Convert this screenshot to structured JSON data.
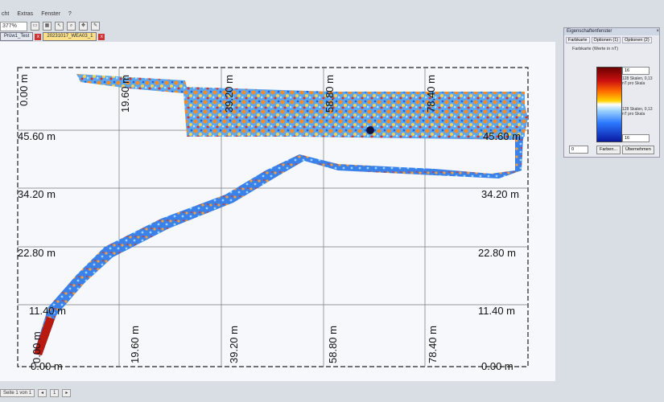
{
  "menu": [
    "cht",
    "Extras",
    "Fenster",
    "?"
  ],
  "toolbar": {
    "zoom": "377%"
  },
  "tabs": [
    {
      "label": "Prüw1_Test"
    },
    {
      "label": "20231017_WEA03_1"
    }
  ],
  "plot": {
    "top_labels": [
      "0.00 m",
      "19.60 m",
      "39.20 m",
      "58.80 m",
      "78.40 m"
    ],
    "bottom_labels": [
      "0.00 m",
      "19.60 m",
      "39.20 m",
      "58.80 m",
      "78.40 m"
    ],
    "left_labels": [
      "45.60 m",
      "34.20 m",
      "22.80 m",
      "11.40 m",
      "0.00 m"
    ],
    "right_labels": [
      "45.60 m",
      "34.20 m",
      "22.80 m",
      "11.40 m",
      "0.00 m"
    ]
  },
  "panel": {
    "title": "Eigenschaftenfenster",
    "tabs": [
      "Farbkarte",
      "Optionen (1)",
      "Optionen (2)"
    ],
    "label": "Farbkarte (Werte in nT)",
    "max": "16",
    "min": "16",
    "upper_text": "128 Skalen, 0,13 nT pro Skala",
    "lower_text": "128 Skalen, 0,13 nT pro Skala",
    "left_value": "0",
    "btn_colors": "Farben...",
    "btn_apply": "Übernehmen"
  },
  "status": {
    "page": "Seite 1 von 1",
    "page_num": "1"
  },
  "colors": {
    "low": "#0a1aa0",
    "mid": "#ffffff",
    "high": "#cc1010"
  }
}
